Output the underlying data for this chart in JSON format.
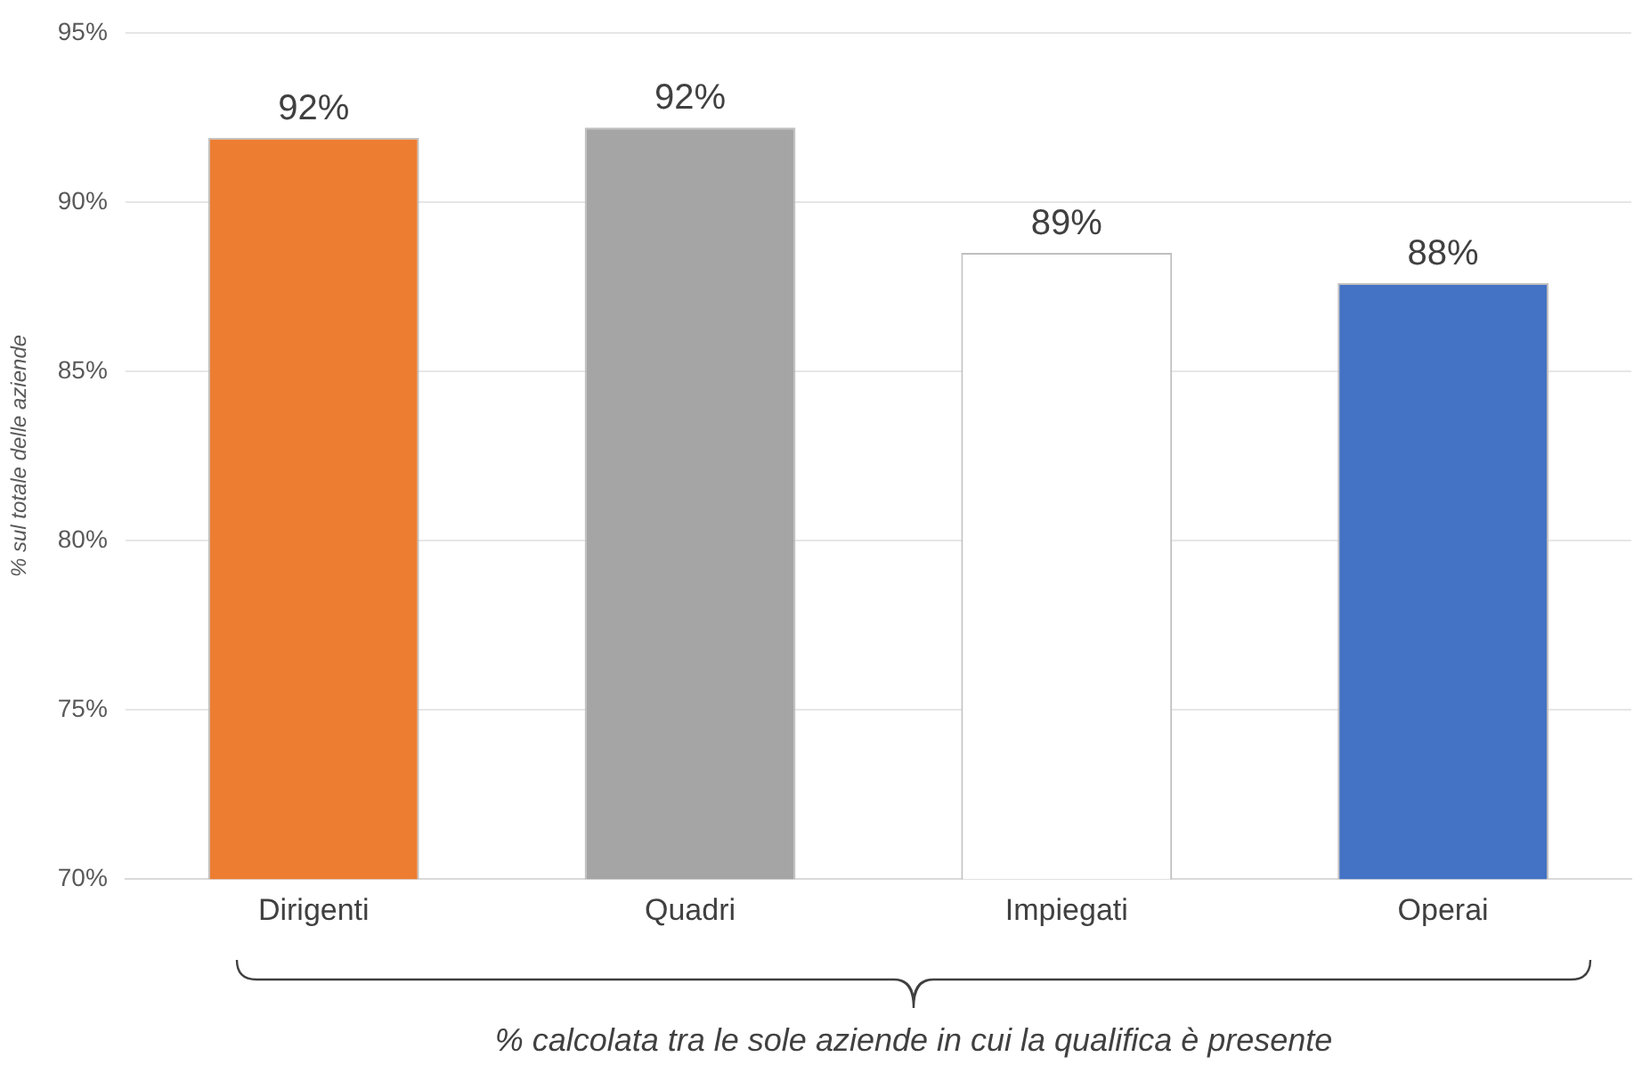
{
  "chart_data": {
    "type": "bar",
    "ylabel": "% sul totale delle aziende",
    "categories": [
      "Dirigenti",
      "Quadri",
      "Impiegati",
      "Operai"
    ],
    "values": [
      91.9,
      92.2,
      88.5,
      87.6
    ],
    "colors": [
      "#ed7d31",
      "#a5a5a5",
      "#ffffff",
      "#4472c4"
    ],
    "value_labels": [
      "92%",
      "92%",
      "89%",
      "88%"
    ],
    "ylim": [
      70,
      95
    ],
    "yticks": [
      {
        "value": 70,
        "label": "70%"
      },
      {
        "value": 75,
        "label": "75%"
      },
      {
        "value": 80,
        "label": "80%"
      },
      {
        "value": 85,
        "label": "85%"
      },
      {
        "value": 90,
        "label": "90%"
      },
      {
        "value": 95,
        "label": "95%"
      }
    ],
    "grid": "y",
    "legend": false,
    "annotations": [
      "% calcolata tra le sole aziende in cui la qualifica è presente"
    ]
  }
}
